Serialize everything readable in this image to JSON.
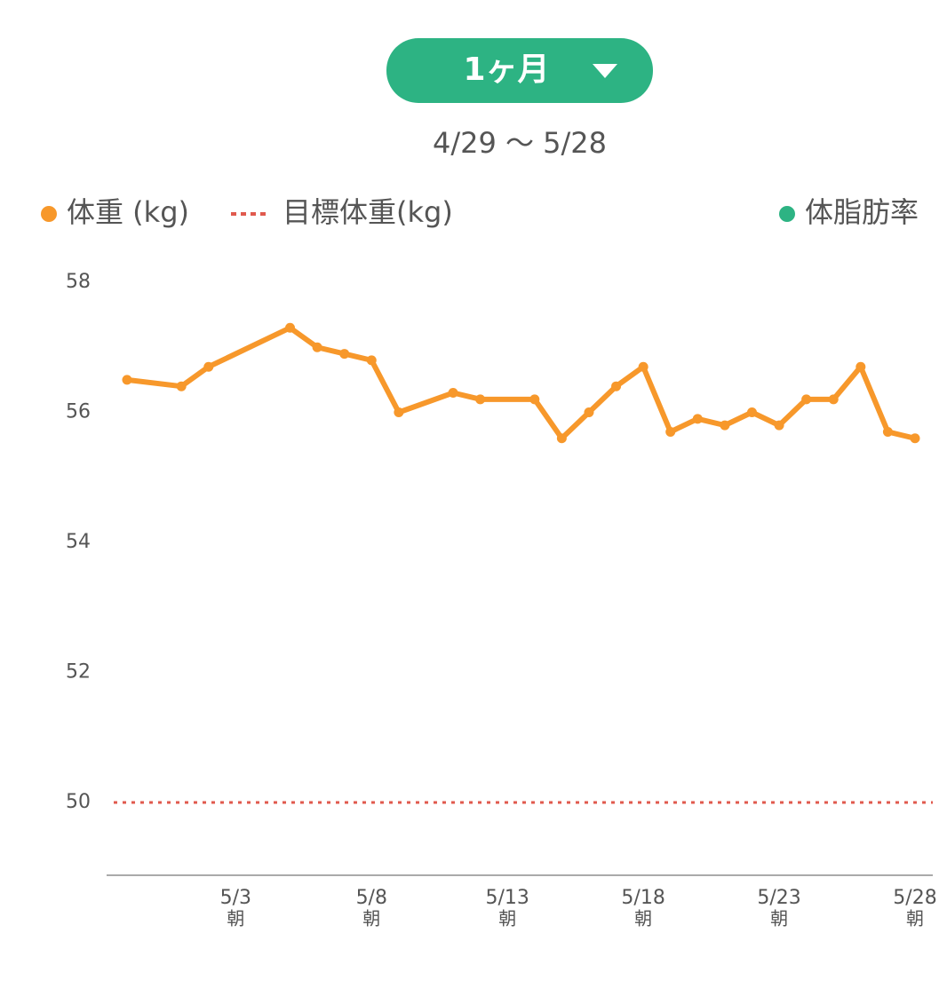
{
  "period_button": "1ヶ月",
  "date_range": "4/29 ～ 5/28",
  "chart_data": {
    "type": "line",
    "legend": [
      {
        "name": "体重 (kg)",
        "color": "#f7982b",
        "marker": "dot"
      },
      {
        "name": "目標体重(kg)",
        "color": "#e05a4e",
        "marker": "dotted"
      },
      {
        "name": "体脂肪率",
        "color": "#2db383",
        "marker": "dot"
      }
    ],
    "series": [
      {
        "name": "体重 (kg)",
        "color": "#f7982b",
        "x": [
          "4/29",
          "5/1",
          "5/2",
          "5/5",
          "5/6",
          "5/7",
          "5/8",
          "5/9",
          "5/11",
          "5/12",
          "5/14",
          "5/15",
          "5/16",
          "5/17",
          "5/18",
          "5/19",
          "5/20",
          "5/21",
          "5/22",
          "5/23",
          "5/24",
          "5/25",
          "5/26",
          "5/27",
          "5/28"
        ],
        "values": [
          56.5,
          56.4,
          56.7,
          57.3,
          57.0,
          56.9,
          56.8,
          56.0,
          56.3,
          56.2,
          56.2,
          55.6,
          56.0,
          56.4,
          56.7,
          55.7,
          55.9,
          55.8,
          56.0,
          55.8,
          56.2,
          56.2,
          56.7,
          55.7,
          55.6
        ]
      }
    ],
    "goal": {
      "name": "目標体重(kg)",
      "value": 50,
      "color": "#e05a4e"
    },
    "xlim": [
      "4/29",
      "5/28"
    ],
    "xticks": [
      "5/3",
      "5/8",
      "5/13",
      "5/18",
      "5/23",
      "5/28"
    ],
    "xtick_sublabel": "朝",
    "ylim": [
      48.88,
      58
    ],
    "yticks": [
      58,
      56,
      54,
      52,
      50
    ]
  }
}
